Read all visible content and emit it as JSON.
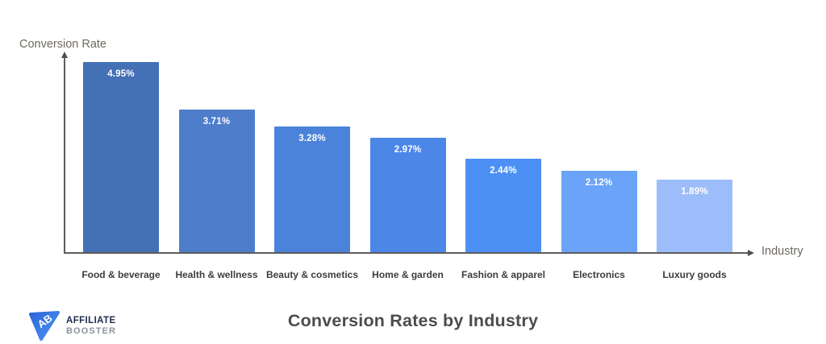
{
  "branding": {
    "logo_line1": "AFFILIATE",
    "logo_line2": "BOOSTER",
    "logo_monogram": "AB"
  },
  "footer": {
    "title": "Conversion Rates by Industry"
  },
  "chart_data": {
    "type": "bar",
    "title": "Conversion Rates by Industry",
    "xlabel": "Industry",
    "ylabel": "Conversion Rate",
    "categories": [
      "Food & beverage",
      "Health & wellness",
      "Beauty & cosmetics",
      "Home & garden",
      "Fashion & apparel",
      "Electronics",
      "Luxury goods"
    ],
    "values": [
      4.95,
      3.71,
      3.28,
      2.97,
      2.44,
      2.12,
      1.89
    ],
    "value_labels": [
      "4.95%",
      "3.71%",
      "3.28%",
      "2.97%",
      "2.44%",
      "2.12%",
      "1.89%"
    ],
    "bar_colors": [
      "#4470b5",
      "#4e7ecb",
      "#4b83da",
      "#4c87e8",
      "#4d90f5",
      "#6ba3f8",
      "#9cbdf9"
    ],
    "value_label_color": "#ffffff",
    "ylim": [
      0,
      5.2
    ],
    "grid": false,
    "legend": "none",
    "axis_arrow_style": "arrows",
    "bar_order": "descending"
  }
}
